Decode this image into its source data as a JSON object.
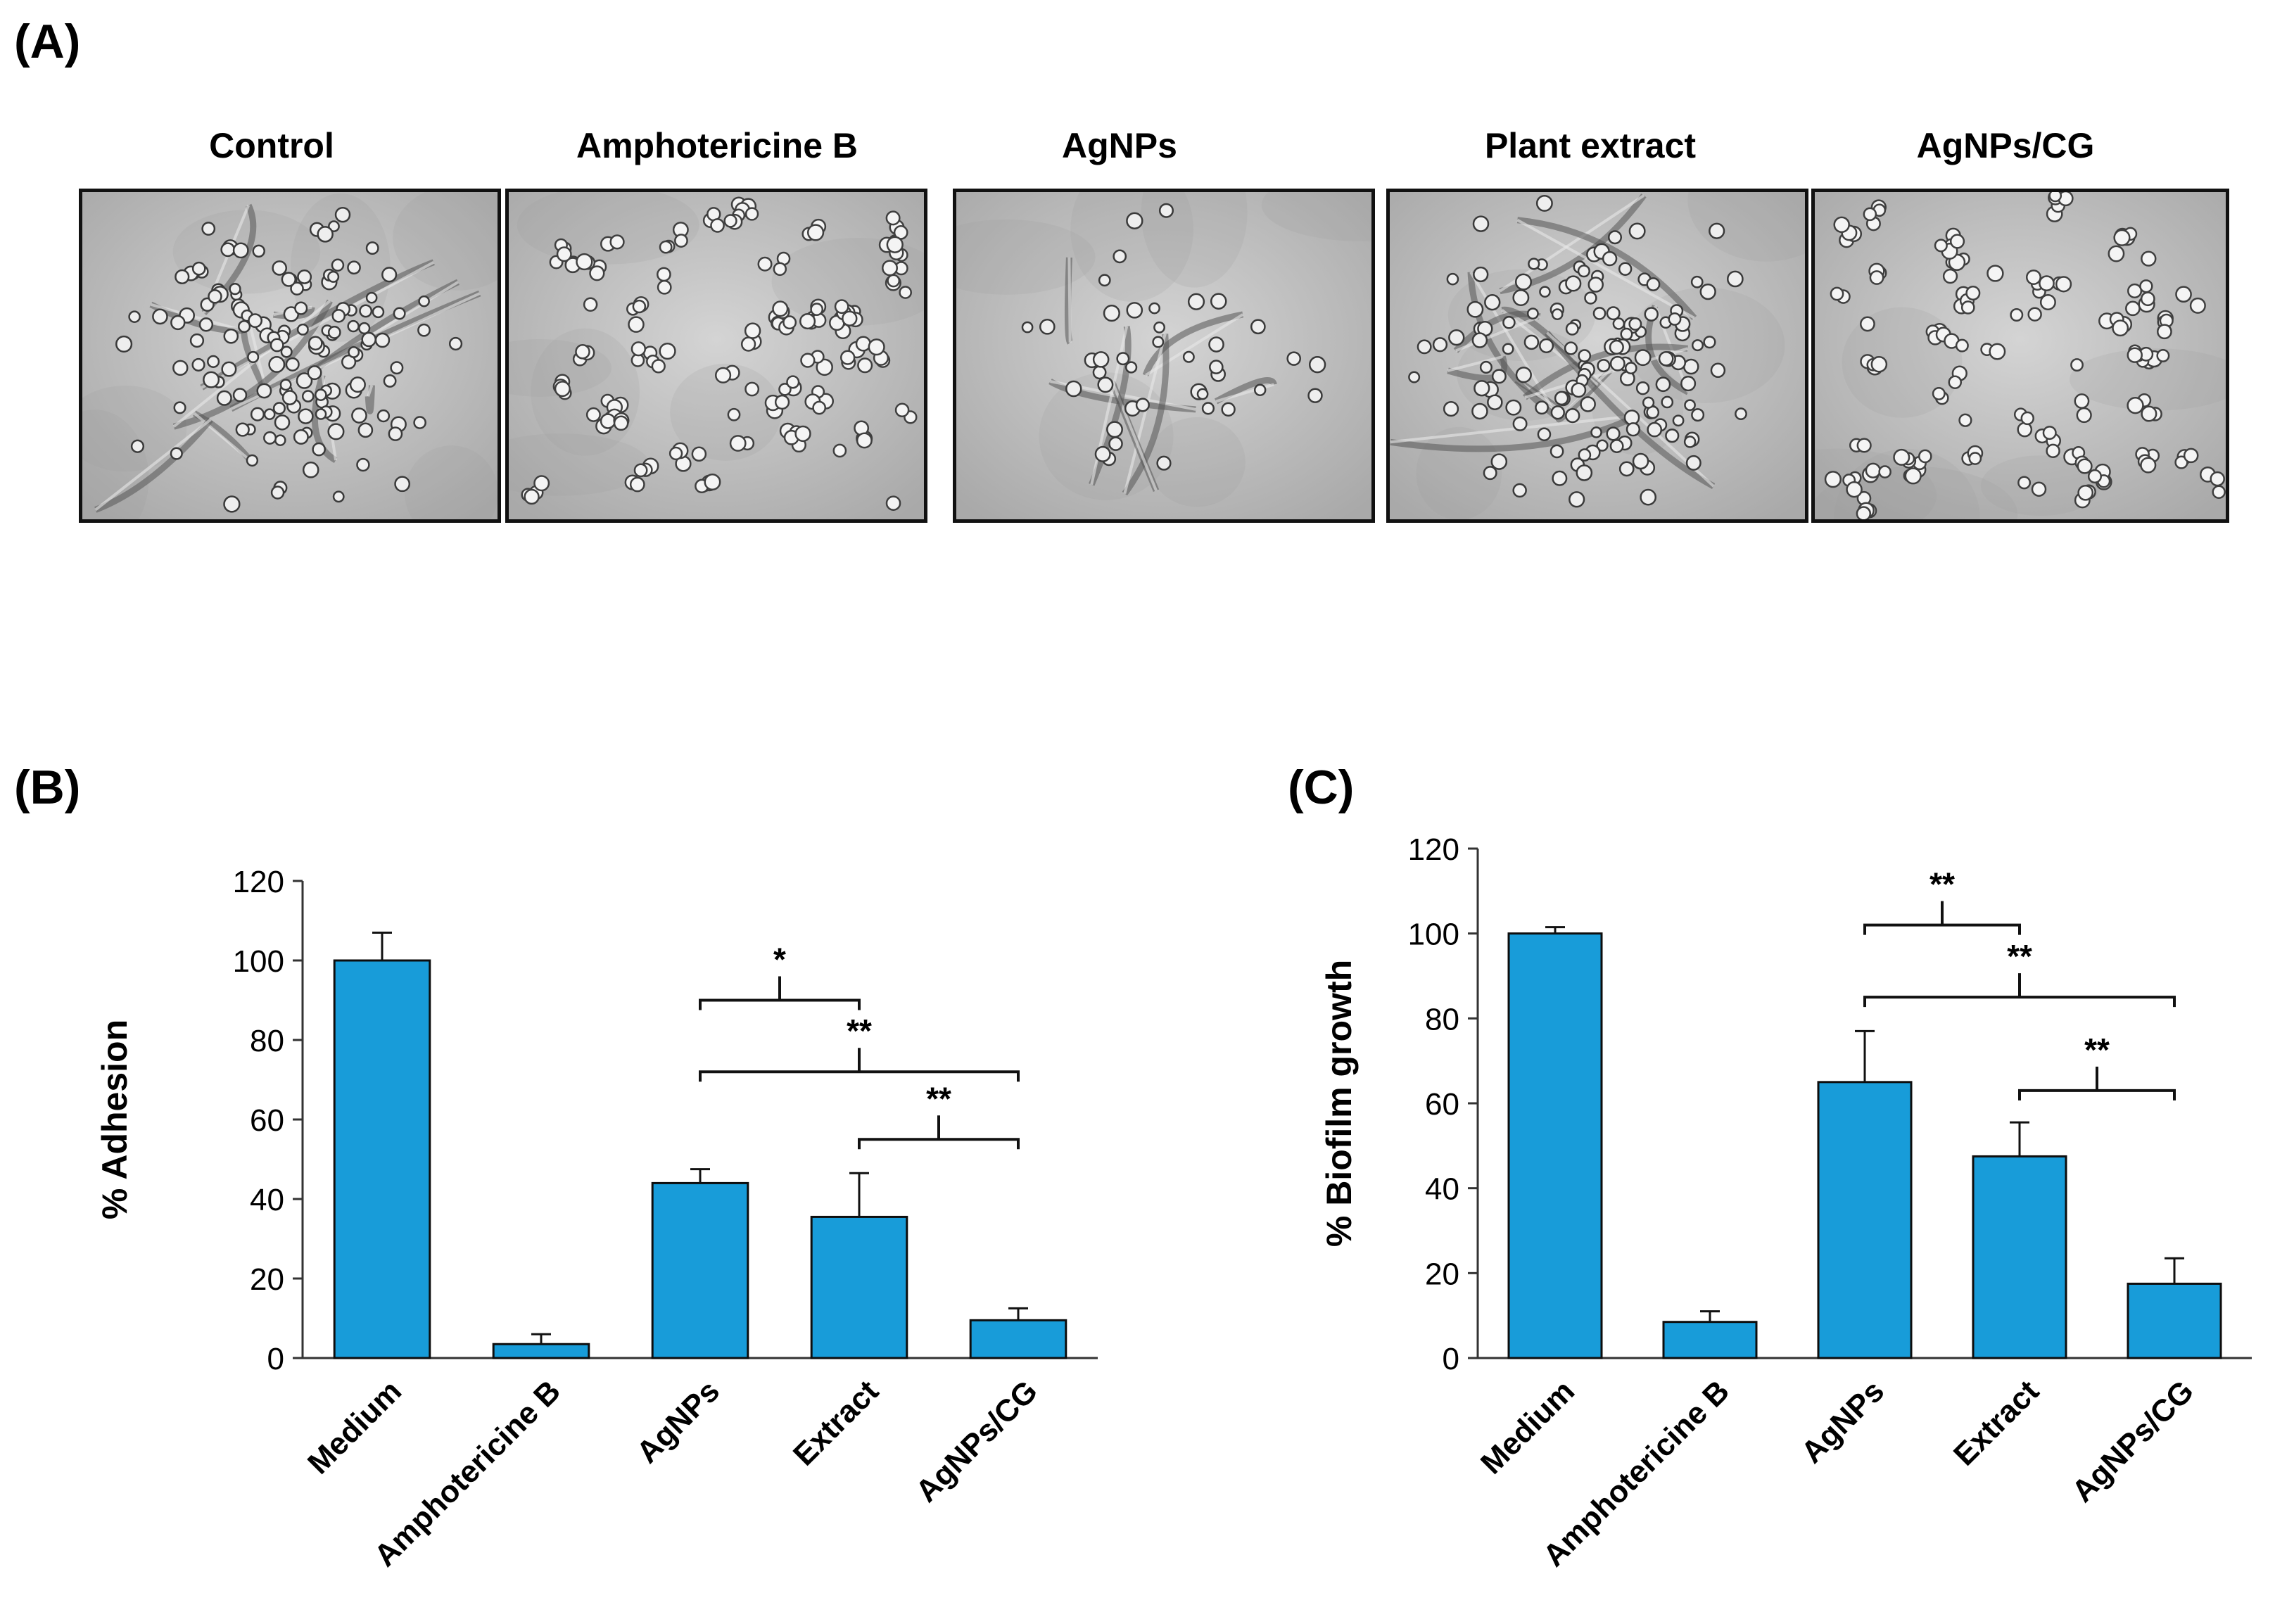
{
  "panels": {
    "a_label": "(A)",
    "b_label": "(B)",
    "c_label": "(C)"
  },
  "micrographs": [
    {
      "title": "Control",
      "style": "hyphae"
    },
    {
      "title": "Amphotericine B",
      "style": "yeast"
    },
    {
      "title": "AgNPs",
      "style": "hyphae-sparse"
    },
    {
      "title": "Plant  extract",
      "style": "hyphae"
    },
    {
      "title": "AgNPs/CG",
      "style": "yeast"
    }
  ],
  "colors": {
    "bar": "#189cd9",
    "bar_edge": "#0d0d0d",
    "micro_bg": "#c8c8c8",
    "cell": "#f2f2f2"
  },
  "chart_data": [
    {
      "type": "bar",
      "ylabel": "% Adhesion",
      "categories": [
        "Medium",
        "Amphotericine B",
        "AgNPs",
        "Extract",
        "AgNPs/CG"
      ],
      "values": [
        100,
        3.5,
        44,
        35.5,
        9.5
      ],
      "errors": [
        7,
        2.5,
        3.5,
        11,
        3
      ],
      "ylim": [
        0,
        120
      ],
      "yticks": [
        0,
        20,
        40,
        60,
        80,
        100,
        120
      ],
      "significance": [
        {
          "from": 2,
          "to": 3,
          "label": "*",
          "y": 90
        },
        {
          "from": 2,
          "to": 4,
          "label": "**",
          "y": 72
        },
        {
          "from": 3,
          "to": 4,
          "label": "**",
          "y": 55
        }
      ]
    },
    {
      "type": "bar",
      "ylabel": "% Biofilm growth",
      "categories": [
        "Medium",
        "Amphotericine B",
        "AgNPs",
        "Extract",
        "AgNPs/CG"
      ],
      "values": [
        100,
        8.5,
        65,
        47.5,
        17.5
      ],
      "errors": [
        1.5,
        2.5,
        12,
        8,
        6
      ],
      "ylim": [
        0,
        120
      ],
      "yticks": [
        0,
        20,
        40,
        60,
        80,
        100,
        120
      ],
      "significance": [
        {
          "from": 2,
          "to": 3,
          "label": "**",
          "y": 102
        },
        {
          "from": 2,
          "to": 4,
          "label": "**",
          "y": 85
        },
        {
          "from": 3,
          "to": 4,
          "label": "**",
          "y": 63
        }
      ]
    }
  ]
}
